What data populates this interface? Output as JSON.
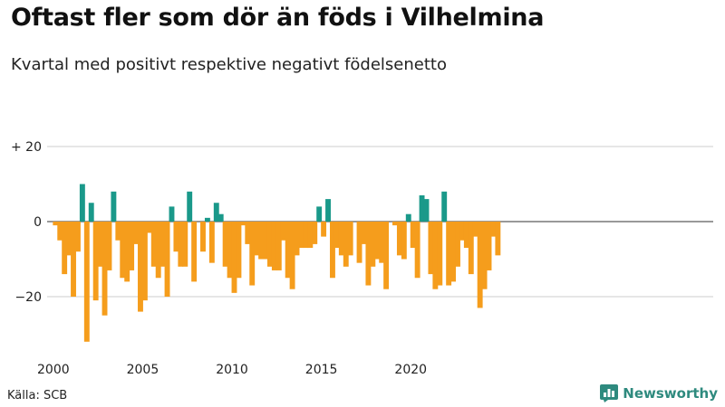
{
  "title": "Oftast fler som dör än föds i Vilhelmina",
  "subtitle": "Kvartal med positivt respektive negativt födelsenetto",
  "source": "Källa: SCB",
  "brand": "Newsworthy",
  "colors": {
    "positive": "#1a998a",
    "negative": "#f59d1c",
    "brand": "#2e8a7e"
  },
  "chart_data": {
    "type": "bar",
    "title": "Oftast fler som dör än föds i Vilhelmina",
    "subtitle": "Kvartal med positivt respektive negativt födelsenetto",
    "ylim": [
      -34,
      22
    ],
    "y_ticks": [
      20,
      0,
      -20
    ],
    "y_tick_labels": [
      "+ 20",
      "0",
      "−20"
    ],
    "x_ticks": [
      2000,
      2005,
      2010,
      2015,
      2020
    ],
    "x_tick_labels": [
      "2000",
      "2005",
      "2010",
      "2015",
      "2020"
    ],
    "start_year": 2000,
    "periods_per_year": 4,
    "values": [
      -1,
      -5,
      -14,
      -9,
      -20,
      -8,
      10,
      -32,
      5,
      -21,
      -12,
      -25,
      -13,
      8,
      -5,
      -15,
      -16,
      -13,
      -6,
      -24,
      -21,
      -3,
      -12,
      -15,
      -12,
      -20,
      4,
      -8,
      -12,
      -12,
      8,
      -16,
      0,
      -8,
      1,
      -11,
      5,
      2,
      -12,
      -15,
      -19,
      -15,
      -1,
      -6,
      -17,
      -9,
      -10,
      -10,
      -12,
      -13,
      -13,
      -5,
      -15,
      -18,
      -9,
      -7,
      -7,
      -7,
      -6,
      4,
      -4,
      6,
      -15,
      -7,
      -9,
      -12,
      -9,
      0,
      -11,
      -6,
      -17,
      -12,
      -10,
      -11,
      -18,
      0,
      -1,
      -9,
      -10,
      2,
      -7,
      -15,
      7,
      6,
      -14,
      -18,
      -17,
      8,
      -17,
      -16,
      -12,
      -5,
      -7,
      -14,
      -4,
      -23,
      -18,
      -13,
      -4,
      -9
    ]
  }
}
